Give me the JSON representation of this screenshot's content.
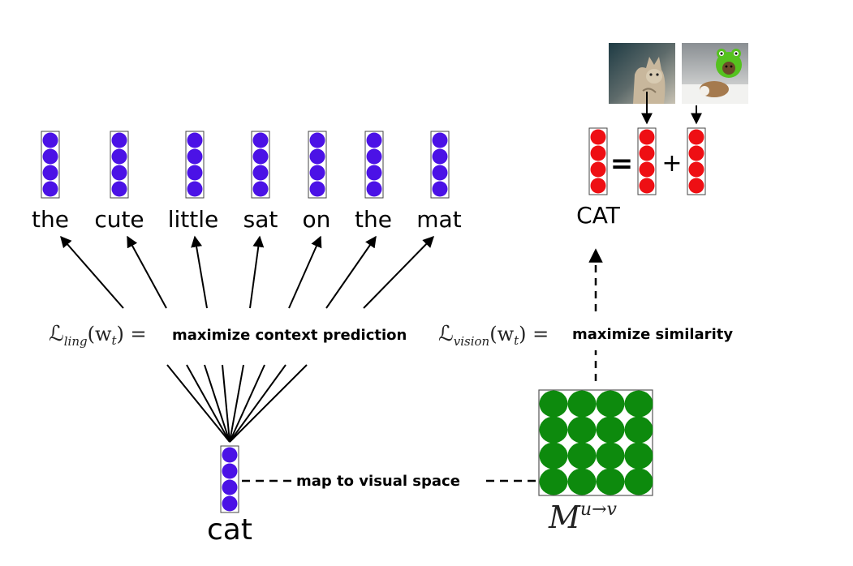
{
  "context_words": [
    "the",
    "cute",
    "little",
    "sat",
    "on",
    "the",
    "mat"
  ],
  "target_word": "cat",
  "concept_label": "CAT",
  "ling_loss": {
    "symbol": "ℒ",
    "subscript": "ling",
    "argument": "(w",
    "argument_sub": "t",
    "close": ") =",
    "text": "maximize context prediction"
  },
  "vision_loss": {
    "symbol": "ℒ",
    "subscript": "vision",
    "argument": "(w",
    "argument_sub": "t",
    "close": ") =",
    "text": "maximize similarity"
  },
  "mapping_label": "map to visual space",
  "matrix_label": {
    "base": "M",
    "superscript": "u→v"
  },
  "equation": {
    "equals": "=",
    "plus": "+"
  },
  "colors": {
    "word_vector": "#4b12e6",
    "image_vector": "#ee0f14",
    "matrix": "#0d8a0d",
    "lines": "#000000"
  }
}
